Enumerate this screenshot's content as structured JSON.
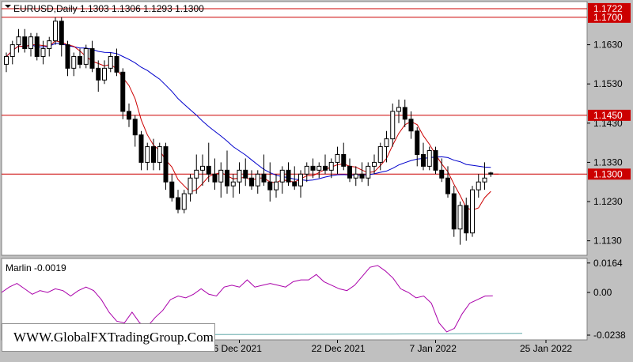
{
  "chart_data": [
    {
      "type": "candlestick",
      "title": "EURUSD,Daily",
      "ohlc_readout": "1.1303 1.1306 1.1293 1.1300",
      "y_ticks": [
        "1.1630",
        "1.1530",
        "1.1430",
        "1.1330",
        "1.1230",
        "1.1130"
      ],
      "ylim": [
        1.1095,
        1.1738
      ],
      "x_ticks": [
        "6 Dec 2021",
        "22 Dec 2021",
        "7 Jan 2022",
        "25 Jan 2022"
      ],
      "x_tick_index": [
        38,
        54,
        70,
        88
      ],
      "grid": false,
      "colors": {
        "background": "#ffffff",
        "candle": "#000000",
        "ma_fast": "#cc0000",
        "ma_slow": "#0000cc",
        "level": "#cc0000"
      },
      "levels": [
        {
          "value": 1.1722,
          "label": "1.1722"
        },
        {
          "value": 1.17,
          "label": "1.1700"
        },
        {
          "value": 1.145,
          "label": "1.1450"
        },
        {
          "value": 1.13,
          "label": "1.1300"
        }
      ],
      "candles": [
        [
          1.158,
          1.161,
          1.156,
          1.16
        ],
        [
          1.16,
          1.164,
          1.158,
          1.163
        ],
        [
          1.163,
          1.167,
          1.161,
          1.165
        ],
        [
          1.165,
          1.167,
          1.161,
          1.162
        ],
        [
          1.162,
          1.166,
          1.16,
          1.165
        ],
        [
          1.165,
          1.166,
          1.159,
          1.16
        ],
        [
          1.16,
          1.164,
          1.158,
          1.162
        ],
        [
          1.162,
          1.165,
          1.16,
          1.164
        ],
        [
          1.164,
          1.17,
          1.163,
          1.169
        ],
        [
          1.169,
          1.17,
          1.16,
          1.163
        ],
        [
          1.163,
          1.164,
          1.155,
          1.157
        ],
        [
          1.157,
          1.161,
          1.155,
          1.16
        ],
        [
          1.16,
          1.162,
          1.157,
          1.158
        ],
        [
          1.158,
          1.163,
          1.157,
          1.162
        ],
        [
          1.162,
          1.164,
          1.156,
          1.157
        ],
        [
          1.157,
          1.159,
          1.151,
          1.154
        ],
        [
          1.154,
          1.159,
          1.153,
          1.157
        ],
        [
          1.157,
          1.161,
          1.156,
          1.16
        ],
        [
          1.16,
          1.162,
          1.155,
          1.156
        ],
        [
          1.156,
          1.157,
          1.144,
          1.146
        ],
        [
          1.146,
          1.148,
          1.142,
          1.144
        ],
        [
          1.144,
          1.145,
          1.137,
          1.14
        ],
        [
          1.14,
          1.141,
          1.131,
          1.133
        ],
        [
          1.133,
          1.138,
          1.131,
          1.137
        ],
        [
          1.137,
          1.139,
          1.131,
          1.133
        ],
        [
          1.133,
          1.138,
          1.131,
          1.137
        ],
        [
          1.137,
          1.138,
          1.126,
          1.128
        ],
        [
          1.128,
          1.13,
          1.123,
          1.124
        ],
        [
          1.124,
          1.126,
          1.12,
          1.121
        ],
        [
          1.121,
          1.126,
          1.12,
          1.125
        ],
        [
          1.125,
          1.13,
          1.123,
          1.129
        ],
        [
          1.129,
          1.135,
          1.125,
          1.131
        ],
        [
          1.131,
          1.135,
          1.127,
          1.132
        ],
        [
          1.132,
          1.138,
          1.128,
          1.13
        ],
        [
          1.13,
          1.134,
          1.126,
          1.128
        ],
        [
          1.128,
          1.133,
          1.124,
          1.131
        ],
        [
          1.131,
          1.136,
          1.125,
          1.127
        ],
        [
          1.127,
          1.13,
          1.124,
          1.128
        ],
        [
          1.128,
          1.133,
          1.125,
          1.131
        ],
        [
          1.131,
          1.134,
          1.127,
          1.129
        ],
        [
          1.129,
          1.131,
          1.126,
          1.127
        ],
        [
          1.127,
          1.131,
          1.125,
          1.13
        ],
        [
          1.13,
          1.135,
          1.127,
          1.128
        ],
        [
          1.128,
          1.133,
          1.123,
          1.126
        ],
        [
          1.126,
          1.13,
          1.124,
          1.128
        ],
        [
          1.128,
          1.132,
          1.125,
          1.131
        ],
        [
          1.131,
          1.133,
          1.127,
          1.128
        ],
        [
          1.128,
          1.132,
          1.126,
          1.127
        ],
        [
          1.127,
          1.131,
          1.124,
          1.13
        ],
        [
          1.13,
          1.133,
          1.128,
          1.132
        ],
        [
          1.132,
          1.134,
          1.129,
          1.131
        ],
        [
          1.131,
          1.133,
          1.129,
          1.132
        ],
        [
          1.132,
          1.135,
          1.13,
          1.131
        ],
        [
          1.131,
          1.134,
          1.129,
          1.133
        ],
        [
          1.133,
          1.137,
          1.13,
          1.135
        ],
        [
          1.135,
          1.138,
          1.131,
          1.132
        ],
        [
          1.132,
          1.134,
          1.128,
          1.129
        ],
        [
          1.129,
          1.132,
          1.127,
          1.13
        ],
        [
          1.13,
          1.133,
          1.128,
          1.129
        ],
        [
          1.129,
          1.133,
          1.127,
          1.132
        ],
        [
          1.132,
          1.135,
          1.13,
          1.133
        ],
        [
          1.133,
          1.138,
          1.131,
          1.137
        ],
        [
          1.137,
          1.141,
          1.133,
          1.139
        ],
        [
          1.139,
          1.148,
          1.137,
          1.146
        ],
        [
          1.146,
          1.149,
          1.143,
          1.147
        ],
        [
          1.147,
          1.149,
          1.142,
          1.144
        ],
        [
          1.144,
          1.146,
          1.139,
          1.141
        ],
        [
          1.141,
          1.142,
          1.132,
          1.135
        ],
        [
          1.135,
          1.138,
          1.131,
          1.132
        ],
        [
          1.132,
          1.137,
          1.131,
          1.136
        ],
        [
          1.136,
          1.137,
          1.13,
          1.131
        ],
        [
          1.131,
          1.134,
          1.128,
          1.129
        ],
        [
          1.129,
          1.132,
          1.124,
          1.125
        ],
        [
          1.125,
          1.127,
          1.114,
          1.116
        ],
        [
          1.116,
          1.123,
          1.112,
          1.122
        ],
        [
          1.122,
          1.124,
          1.113,
          1.115
        ],
        [
          1.115,
          1.127,
          1.114,
          1.126
        ],
        [
          1.126,
          1.13,
          1.124,
          1.128
        ],
        [
          1.128,
          1.133,
          1.126,
          1.129
        ],
        [
          1.1303,
          1.1306,
          1.1293,
          1.13
        ]
      ]
    },
    {
      "type": "line",
      "title": "Marlin -0.0019",
      "y_ticks": [
        "0.0164",
        "0.00",
        "-0.0238"
      ],
      "ylim": [
        -0.026,
        0.0185
      ],
      "colors": {
        "marlin": "#aa00aa",
        "signal": "#5fa8a8"
      },
      "series": [
        {
          "values": [
            0.0,
            0.003,
            0.005,
            0.002,
            -0.001,
            0.001,
            0.0,
            0.002,
            0.001,
            -0.002,
            0.001,
            0.003,
            0.001,
            -0.004,
            -0.011,
            -0.016,
            -0.017,
            -0.011,
            -0.017,
            -0.019,
            -0.014,
            -0.01,
            -0.004,
            -0.002,
            -0.003,
            -0.001,
            0.002,
            -0.001,
            -0.002,
            0.003,
            0.004,
            0.003,
            0.007,
            0.003,
            0.004,
            0.005,
            0.004,
            0.003,
            0.006,
            0.007,
            0.007,
            0.01,
            0.006,
            0.004,
            0.002,
            0.001,
            0.004,
            0.009,
            0.014,
            0.015,
            0.012,
            0.008,
            0.002,
            0.0,
            -0.003,
            -0.002,
            -0.006,
            -0.017,
            -0.022,
            -0.02,
            -0.012,
            -0.006,
            -0.004,
            -0.002,
            -0.0019
          ]
        },
        {
          "values": [
            -0.0237,
            -0.0236,
            -0.0235,
            -0.0234,
            -0.0233,
            -0.0232,
            -0.023,
            -0.0228
          ]
        }
      ]
    }
  ],
  "branding": {
    "watermark": "WWW.GlobalFXTradingGroup.Com"
  }
}
